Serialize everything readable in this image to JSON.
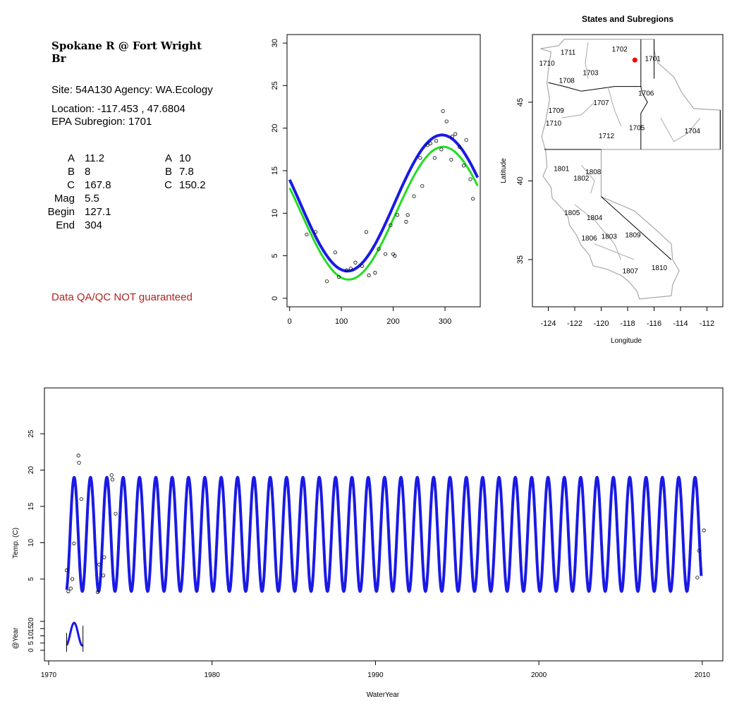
{
  "site": {
    "title": "Spokane R @ Fort Wright\nBr",
    "site_line": "Site: 54A130     Agency: WA.Ecology",
    "location_line": "Location: -117.453 , 47.6804",
    "subregion_line": "EPA Subregion: 1701",
    "qa_note": "Data QA/QC NOT guaranteed"
  },
  "params": [
    {
      "label": "A",
      "value": "11.2",
      "label2": "A",
      "value2": "10"
    },
    {
      "label": "B",
      "value": "8",
      "label2": "B",
      "value2": "7.8"
    },
    {
      "label": "C",
      "value": "167.8",
      "label2": "C",
      "value2": "150.2"
    },
    {
      "label": "Mag",
      "value": "5.5"
    },
    {
      "label": "Begin",
      "value": "127.1"
    },
    {
      "label": "End",
      "value": "304"
    }
  ],
  "chart_data": [
    {
      "type": "scatter",
      "title": "",
      "xlabel": "",
      "ylabel": "",
      "xlim": [
        -5,
        368
      ],
      "ylim": [
        -1,
        31
      ],
      "xticks": [
        0,
        100,
        200,
        300
      ],
      "yticks": [
        0,
        5,
        10,
        15,
        20,
        25,
        30
      ],
      "series_colors": {
        "fit_green": "#22dd22",
        "fit_blue": "#1a1ae6",
        "points": "#000000"
      },
      "points": [
        [
          33,
          7.5
        ],
        [
          50,
          7.8
        ],
        [
          72,
          2.0
        ],
        [
          88,
          5.4
        ],
        [
          95,
          2.5
        ],
        [
          110,
          3.3
        ],
        [
          118,
          3.5
        ],
        [
          127,
          4.2
        ],
        [
          140,
          3.8
        ],
        [
          148,
          7.8
        ],
        [
          153,
          2.7
        ],
        [
          165,
          3.0
        ],
        [
          172,
          5.8
        ],
        [
          185,
          5.2
        ],
        [
          195,
          8.6
        ],
        [
          200,
          5.2
        ],
        [
          203,
          5.0
        ],
        [
          208,
          9.8
        ],
        [
          225,
          9.0
        ],
        [
          228,
          9.8
        ],
        [
          240,
          12.0
        ],
        [
          252,
          16.5
        ],
        [
          256,
          13.2
        ],
        [
          266,
          18.0
        ],
        [
          272,
          18.2
        ],
        [
          280,
          16.5
        ],
        [
          283,
          18.5
        ],
        [
          293,
          17.5
        ],
        [
          296,
          22.0
        ],
        [
          303,
          20.8
        ],
        [
          312,
          16.3
        ],
        [
          314,
          19.0
        ],
        [
          320,
          19.3
        ],
        [
          328,
          17.8
        ],
        [
          336,
          15.6
        ],
        [
          341,
          18.6
        ],
        [
          349,
          14.0
        ],
        [
          354,
          11.7
        ]
      ],
      "curve_params": {
        "blue": {
          "A": 11.2,
          "B": 8,
          "C": 167.8
        },
        "green": {
          "A": 10,
          "B": 7.8,
          "C": 150.2
        }
      }
    },
    {
      "type": "map",
      "title": "States and Subregions",
      "xlabel": "Longitude",
      "ylabel": "Latitude",
      "xlim": [
        -125.2,
        -110.8
      ],
      "ylim": [
        32.0,
        49.3
      ],
      "xticks": [
        -124,
        -122,
        -120,
        -118,
        -116,
        -114,
        -112
      ],
      "yticks": [
        35,
        40,
        45
      ],
      "site_marker": {
        "lon": -117.453,
        "lat": 47.6804,
        "color": "#ff0000"
      },
      "region_labels": [
        {
          "label": "1701",
          "lon": -116.1,
          "lat": 47.8
        },
        {
          "label": "1702",
          "lon": -118.6,
          "lat": 48.4
        },
        {
          "label": "1703",
          "lon": -120.8,
          "lat": 46.9
        },
        {
          "label": "1704",
          "lon": -113.1,
          "lat": 43.2
        },
        {
          "label": "1705",
          "lon": -117.3,
          "lat": 43.4
        },
        {
          "label": "1706",
          "lon": -116.6,
          "lat": 45.6
        },
        {
          "label": "1707",
          "lon": -120.0,
          "lat": 45.0
        },
        {
          "label": "1708",
          "lon": -122.6,
          "lat": 46.4
        },
        {
          "label": "1709",
          "lon": -123.4,
          "lat": 44.5
        },
        {
          "label": "1710",
          "lon": -123.6,
          "lat": 43.7
        },
        {
          "label": "1711",
          "lon": -122.5,
          "lat": 48.2
        },
        {
          "label": "1712",
          "lon": -119.6,
          "lat": 42.9
        },
        {
          "label": "1801",
          "lon": -123.0,
          "lat": 40.8
        },
        {
          "label": "1802",
          "lon": -121.5,
          "lat": 40.2
        },
        {
          "label": "1803",
          "lon": -119.4,
          "lat": 36.5
        },
        {
          "label": "1804",
          "lon": -120.5,
          "lat": 37.7
        },
        {
          "label": "1805",
          "lon": -122.2,
          "lat": 38.0
        },
        {
          "label": "1806",
          "lon": -120.9,
          "lat": 36.4
        },
        {
          "label": "1807",
          "lon": -117.8,
          "lat": 34.3
        },
        {
          "label": "1808",
          "lon": -120.6,
          "lat": 40.6
        },
        {
          "label": "1809",
          "lon": -117.6,
          "lat": 36.6
        },
        {
          "label": "1810",
          "lon": -115.6,
          "lat": 34.5
        },
        {
          "label": "1710",
          "lon": -124.1,
          "lat": 47.5
        }
      ]
    },
    {
      "type": "line",
      "title": "",
      "xlabel": "WaterYear",
      "ylabel": "Temp. (C)",
      "xlim": [
        1970.0,
        2011.0
      ],
      "ylim": [
        0.0,
        30.0
      ],
      "xticks": [
        1970,
        1980,
        1990,
        2000,
        2010
      ],
      "yticks": [
        5,
        10,
        15,
        20,
        25
      ],
      "series": [
        {
          "start": 1971.1,
          "end": 2009.95,
          "max": 19.0,
          "min": 3.3,
          "color": "#1a1ae6"
        }
      ],
      "points": [
        [
          1971.1,
          6.2
        ],
        [
          1971.2,
          3.3
        ],
        [
          1971.35,
          3.7
        ],
        [
          1971.45,
          5.0
        ],
        [
          1971.55,
          9.9
        ],
        [
          1971.82,
          22.0
        ],
        [
          1971.86,
          21.0
        ],
        [
          1972.0,
          16.0
        ],
        [
          1973.0,
          3.2
        ],
        [
          1973.1,
          7.0
        ],
        [
          1973.35,
          5.5
        ],
        [
          1973.4,
          8.0
        ],
        [
          1973.85,
          19.3
        ],
        [
          1973.9,
          18.7
        ],
        [
          1974.1,
          14.0
        ],
        [
          2009.7,
          5.2
        ],
        [
          2009.8,
          8.9
        ],
        [
          2010.1,
          11.7
        ]
      ]
    },
    {
      "type": "line",
      "title": "",
      "xlabel": "",
      "ylabel": "@Year",
      "yticks": [
        0,
        5,
        10,
        15,
        20
      ],
      "ylim": [
        -2,
        26
      ],
      "series": [
        {
          "start": 1971.1,
          "end": 1972.1,
          "max": 19.0,
          "min": 3.3,
          "color": "#1a1ae6"
        }
      ]
    }
  ]
}
